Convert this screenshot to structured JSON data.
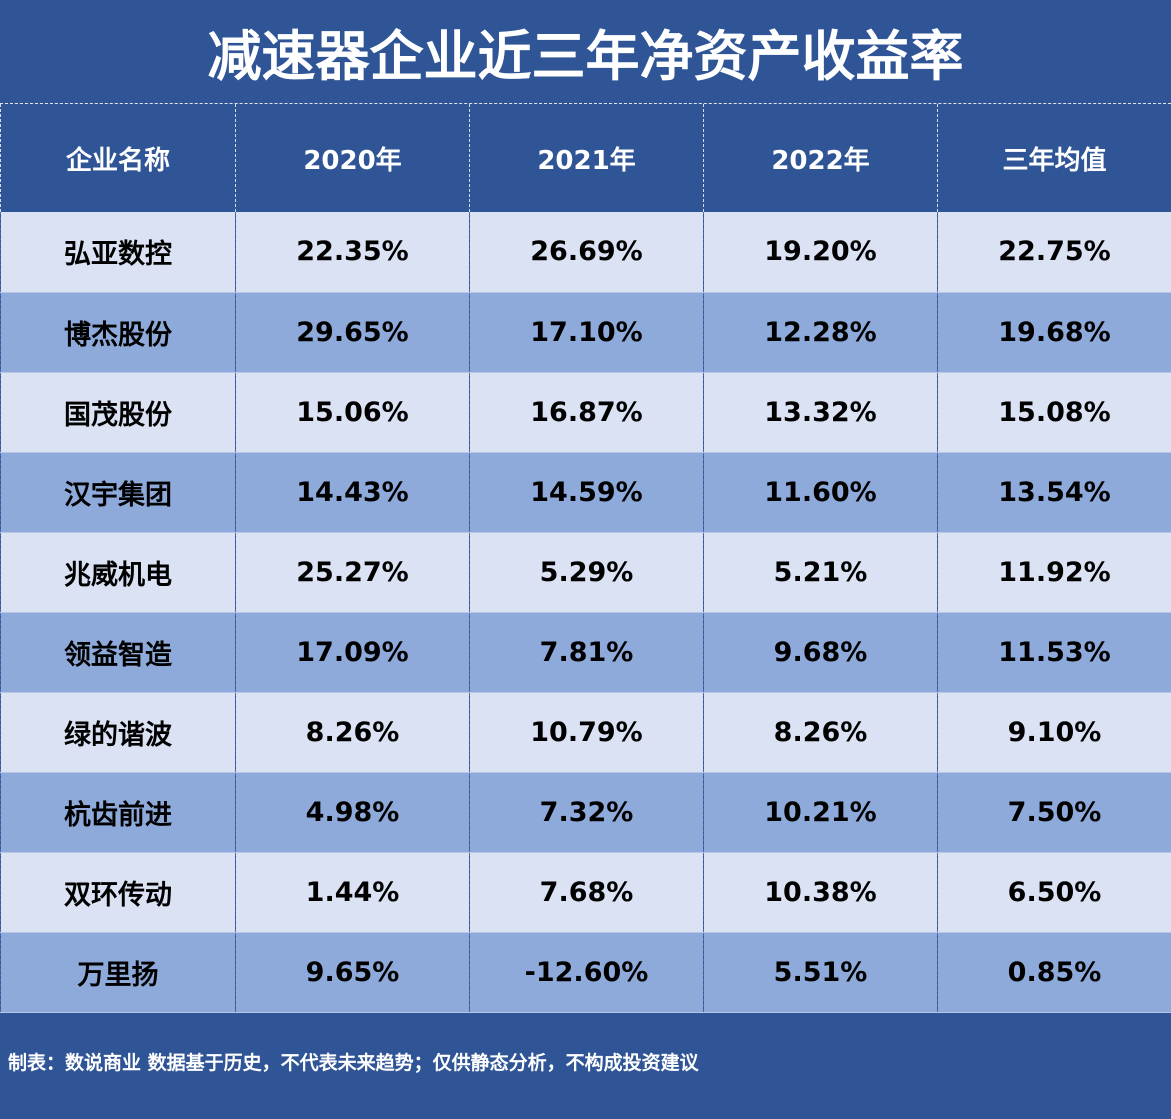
{
  "title": "减速器企业近三年净资产收益率",
  "table": {
    "headers": [
      "企业名称",
      "2020年",
      "2021年",
      "2022年",
      "三年均值"
    ],
    "rows": [
      [
        "弘亚数控",
        "22.35%",
        "26.69%",
        "19.20%",
        "22.75%"
      ],
      [
        "博杰股份",
        "29.65%",
        "17.10%",
        "12.28%",
        "19.68%"
      ],
      [
        "国茂股份",
        "15.06%",
        "16.87%",
        "13.32%",
        "15.08%"
      ],
      [
        "汉宇集团",
        "14.43%",
        "14.59%",
        "11.60%",
        "13.54%"
      ],
      [
        "兆威机电",
        "25.27%",
        "5.29%",
        "5.21%",
        "11.92%"
      ],
      [
        "领益智造",
        "17.09%",
        "7.81%",
        "9.68%",
        "11.53%"
      ],
      [
        "绿的谐波",
        "8.26%",
        "10.79%",
        "8.26%",
        "9.10%"
      ],
      [
        "杭齿前进",
        "4.98%",
        "7.32%",
        "10.21%",
        "7.50%"
      ],
      [
        "双环传动",
        "1.44%",
        "7.68%",
        "10.38%",
        "6.50%"
      ],
      [
        "万里扬",
        "9.65%",
        "-12.60%",
        "5.51%",
        "0.85%"
      ]
    ]
  },
  "footer": "制表：数说商业 数据基于历史，不代表未来趋势；仅供静态分析，不构成投资建议",
  "colors": {
    "header_bg": "#2f5597",
    "row_light": "#dae2f3",
    "row_mid": "#8eaadb"
  }
}
